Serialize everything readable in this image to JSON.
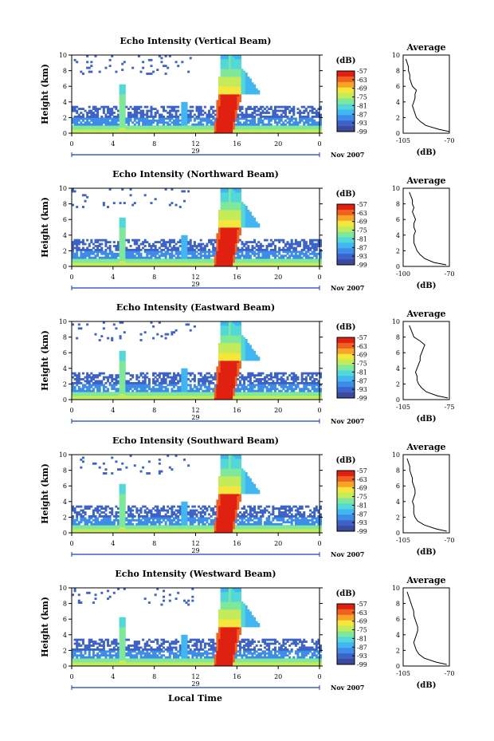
{
  "figure": {
    "xlabel": "Local Time",
    "date_label": "Nov 2007",
    "day_label": "29",
    "heatmap_ylabel": "Height (km)",
    "colorbar_unit": "(dB)",
    "profile_title": "Average",
    "profile_xlabel": "(dB)"
  },
  "colors": {
    "scale": [
      "#3b4a9c",
      "#3d63c8",
      "#3c8ce8",
      "#41b6f0",
      "#52d8d8",
      "#7fe89a",
      "#c4ec5a",
      "#f4e63a",
      "#f8a426",
      "#f06020",
      "#e02010"
    ]
  },
  "chart_data": [
    {
      "type": "heatmap",
      "title": "Echo Intensity (Vertical Beam)",
      "x_ticks": [
        "0",
        "4",
        "8",
        "12",
        "16",
        "20",
        "0"
      ],
      "xlim": [
        0,
        24
      ],
      "ylim": [
        0,
        10
      ],
      "y_ticks": [
        "0",
        "2",
        "4",
        "6",
        "8",
        "10"
      ],
      "colorbar_ticks": [
        "-57",
        "-63",
        "-69",
        "-75",
        "-81",
        "-87",
        "-93",
        "-99"
      ],
      "colorbar_range": [
        -99,
        -57
      ],
      "profile": {
        "x_ticks": [
          "-105",
          "-70"
        ],
        "xlim": [
          -105,
          -70
        ],
        "y_ticks": [
          "0",
          "2",
          "4",
          "6",
          "8",
          "10"
        ],
        "height": [
          0.2,
          0.5,
          1.0,
          1.5,
          2.0,
          2.5,
          3.0,
          3.5,
          4.0,
          4.5,
          5.0,
          5.5,
          6.0,
          6.5,
          7.0,
          7.5,
          8.0,
          8.5,
          9.0,
          9.5
        ],
        "values": [
          -70,
          -78,
          -88,
          -92,
          -95,
          -96,
          -97,
          -98,
          -97,
          -96,
          -96,
          -95,
          -98,
          -99,
          -100,
          -100,
          -101,
          -101,
          -102,
          -103
        ]
      }
    },
    {
      "type": "heatmap",
      "title": "Echo Intensity (Northward Beam)",
      "x_ticks": [
        "0",
        "4",
        "8",
        "12",
        "16",
        "20",
        "0"
      ],
      "xlim": [
        0,
        24
      ],
      "ylim": [
        0,
        10
      ],
      "y_ticks": [
        "0",
        "2",
        "4",
        "6",
        "8",
        "10"
      ],
      "colorbar_ticks": [
        "-57",
        "-63",
        "-69",
        "-75",
        "-81",
        "-87",
        "-93",
        "-99"
      ],
      "colorbar_range": [
        -99,
        -57
      ],
      "profile": {
        "x_ticks": [
          "-100",
          "-70"
        ],
        "xlim": [
          -100,
          -70
        ],
        "y_ticks": [
          "0",
          "2",
          "4",
          "6",
          "8",
          "10"
        ],
        "height": [
          0.2,
          0.5,
          1.0,
          1.5,
          2.0,
          2.5,
          3.0,
          3.5,
          4.0,
          4.5,
          5.0,
          5.5,
          6.0,
          6.5,
          7.0,
          7.5,
          8.0,
          8.5,
          9.0,
          9.5
        ],
        "values": [
          -72,
          -80,
          -86,
          -89,
          -91,
          -92,
          -93,
          -93,
          -93,
          -92,
          -93,
          -93,
          -92,
          -93,
          -94,
          -93,
          -94,
          -94,
          -95,
          -96
        ]
      }
    },
    {
      "type": "heatmap",
      "title": "Echo Intensity (Eastward Beam)",
      "x_ticks": [
        "0",
        "4",
        "8",
        "12",
        "16",
        "20",
        "0"
      ],
      "xlim": [
        0,
        24
      ],
      "ylim": [
        0,
        10
      ],
      "y_ticks": [
        "0",
        "2",
        "4",
        "6",
        "8",
        "10"
      ],
      "colorbar_ticks": [
        "-57",
        "-63",
        "-69",
        "-75",
        "-81",
        "-87",
        "-93",
        "-99"
      ],
      "colorbar_range": [
        -99,
        -57
      ],
      "profile": {
        "x_ticks": [
          "-105",
          "-75"
        ],
        "xlim": [
          -105,
          -75
        ],
        "y_ticks": [
          "0",
          "2",
          "4",
          "6",
          "8",
          "10"
        ],
        "height": [
          0.2,
          0.5,
          1.0,
          1.5,
          2.0,
          2.5,
          3.0,
          3.5,
          4.0,
          4.5,
          5.0,
          5.5,
          6.0,
          6.5,
          7.0,
          7.5,
          8.0,
          8.5,
          9.0,
          9.5
        ],
        "values": [
          -76,
          -83,
          -90,
          -93,
          -95,
          -96,
          -96,
          -97,
          -96,
          -95,
          -94,
          -94,
          -93,
          -92,
          -91,
          -94,
          -98,
          -99,
          -100,
          -101
        ]
      }
    },
    {
      "type": "heatmap",
      "title": "Echo Intensity (Southward Beam)",
      "x_ticks": [
        "0",
        "4",
        "8",
        "12",
        "16",
        "20",
        "0"
      ],
      "xlim": [
        0,
        24
      ],
      "ylim": [
        0,
        10
      ],
      "y_ticks": [
        "0",
        "2",
        "4",
        "6",
        "8",
        "10"
      ],
      "colorbar_ticks": [
        "-57",
        "-63",
        "-69",
        "-75",
        "-81",
        "-87",
        "-93",
        "-99"
      ],
      "colorbar_range": [
        -99,
        -57
      ],
      "profile": {
        "x_ticks": [
          "-105",
          "-70"
        ],
        "xlim": [
          -105,
          -70
        ],
        "y_ticks": [
          "0",
          "2",
          "4",
          "6",
          "8",
          "10"
        ],
        "height": [
          0.2,
          0.5,
          1.0,
          1.5,
          2.0,
          2.5,
          3.0,
          3.5,
          4.0,
          4.5,
          5.0,
          5.5,
          6.0,
          6.5,
          7.0,
          7.5,
          8.0,
          8.5,
          9.0,
          9.5
        ],
        "values": [
          -72,
          -80,
          -89,
          -94,
          -96,
          -97,
          -97,
          -97,
          -98,
          -97,
          -96,
          -96,
          -97,
          -98,
          -98,
          -99,
          -100,
          -100,
          -101,
          -102
        ]
      }
    },
    {
      "type": "heatmap",
      "title": "Echo Intensity (Westward Beam)",
      "x_ticks": [
        "0",
        "4",
        "8",
        "12",
        "16",
        "20",
        "0"
      ],
      "xlim": [
        0,
        24
      ],
      "ylim": [
        0,
        10
      ],
      "y_ticks": [
        "0",
        "2",
        "4",
        "6",
        "8",
        "10"
      ],
      "colorbar_ticks": [
        "-57",
        "-63",
        "-69",
        "-75",
        "-81",
        "-87",
        "-93",
        "-99"
      ],
      "colorbar_range": [
        -99,
        -57
      ],
      "profile": {
        "x_ticks": [
          "-105",
          "-70"
        ],
        "xlim": [
          -105,
          -70
        ],
        "y_ticks": [
          "0",
          "2",
          "4",
          "6",
          "8",
          "10"
        ],
        "height": [
          0.2,
          0.5,
          1.0,
          1.5,
          2.0,
          2.5,
          3.0,
          3.5,
          4.0,
          4.5,
          5.0,
          5.5,
          6.0,
          6.5,
          7.0,
          7.5,
          8.0,
          8.5,
          9.0,
          9.5
        ],
        "values": [
          -72,
          -80,
          -89,
          -93,
          -95,
          -96,
          -97,
          -96,
          -95,
          -94,
          -94,
          -95,
          -96,
          -97,
          -97,
          -98,
          -99,
          -100,
          -101,
          -102
        ]
      }
    }
  ]
}
